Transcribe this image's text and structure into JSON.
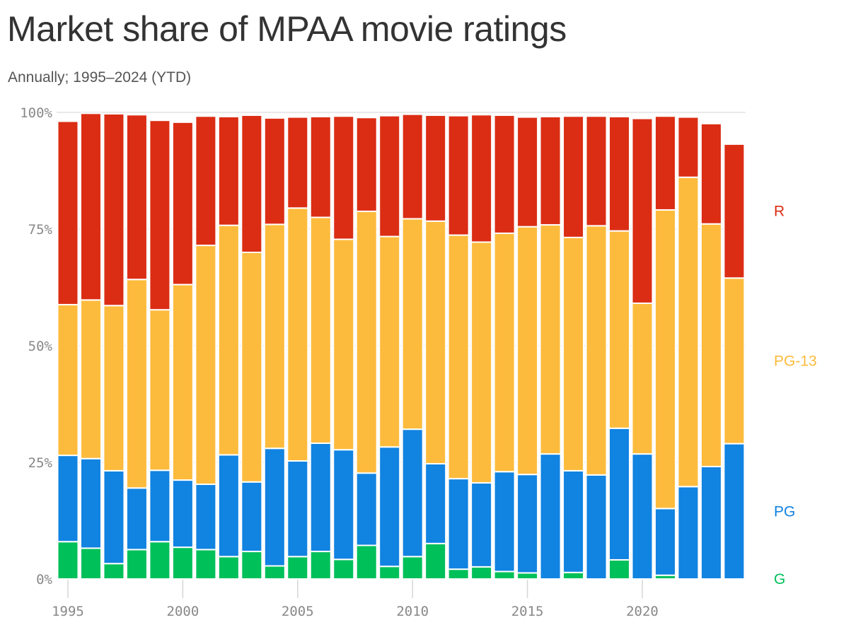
{
  "chart_data": {
    "type": "bar",
    "stacked": true,
    "title": "Market share of MPAA movie ratings",
    "subtitle": "Annually; 1995–2024 (YTD)",
    "x": [
      1995,
      1996,
      1997,
      1998,
      1999,
      2000,
      2001,
      2002,
      2003,
      2004,
      2005,
      2006,
      2007,
      2008,
      2009,
      2010,
      2011,
      2012,
      2013,
      2014,
      2015,
      2016,
      2017,
      2018,
      2019,
      2020,
      2021,
      2022,
      2023,
      2024
    ],
    "x_ticks": [
      1995,
      2000,
      2005,
      2010,
      2015,
      2020
    ],
    "y_ticks": [
      0,
      25,
      50,
      75,
      100
    ],
    "y_tick_labels": [
      "0%",
      "25%",
      "50%",
      "75%",
      "100%"
    ],
    "ylim": [
      0,
      100
    ],
    "grid": true,
    "legend": "right, inline labels",
    "series": [
      {
        "name": "G",
        "color": "#00c05a",
        "values": [
          8,
          6.6,
          3.3,
          6.3,
          8,
          6.8,
          6.3,
          4.8,
          5.9,
          2.8,
          4.8,
          5.9,
          4.2,
          7.2,
          2.7,
          4.8,
          7.6,
          2.1,
          2.6,
          1.6,
          1.3,
          0,
          1.4,
          0,
          4.1,
          0,
          0.8,
          0,
          0,
          0
        ]
      },
      {
        "name": "PG",
        "color": "#1183e1",
        "values": [
          18.5,
          19.2,
          19.9,
          13.2,
          15.3,
          14.4,
          14,
          21.8,
          14.9,
          25.2,
          20.5,
          23.2,
          23.5,
          15.5,
          25.6,
          27.3,
          17.1,
          19.4,
          18,
          21.4,
          21.1,
          26.8,
          21.8,
          22.3,
          28.2,
          26.8,
          14.3,
          19.8,
          24.1,
          29
        ]
      },
      {
        "name": "PG-13",
        "color": "#fdbb3d",
        "values": [
          32.3,
          34,
          35.4,
          44.7,
          34.4,
          41.9,
          51.2,
          49.2,
          49.2,
          48,
          54.2,
          48.4,
          45.1,
          56.1,
          45.1,
          45.1,
          52,
          52.2,
          51.6,
          51.1,
          53.1,
          49.1,
          50,
          53.4,
          42.3,
          32.3,
          64,
          66.3,
          52,
          35.5
        ]
      },
      {
        "name": "R",
        "color": "#db2d14",
        "values": [
          39.3,
          40,
          41.1,
          35.3,
          40.6,
          34.8,
          27.7,
          23.3,
          29.4,
          22.8,
          19.5,
          21.6,
          26.4,
          20.1,
          25.9,
          22.4,
          22.7,
          25.6,
          27.3,
          25.3,
          23.5,
          23.2,
          26,
          23.5,
          24.5,
          39.6,
          20.1,
          12.9,
          21.5,
          28.7
        ]
      }
    ]
  }
}
